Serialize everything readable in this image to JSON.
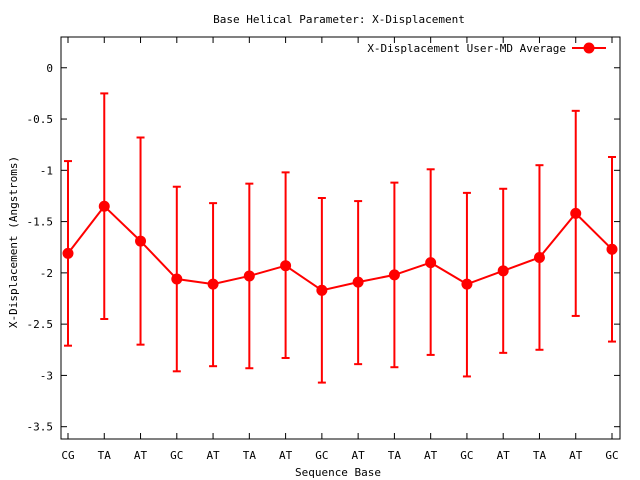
{
  "chart_data": {
    "type": "line",
    "title": "Base  Helical Parameter: X-Displacement",
    "xlabel": "Sequence Base",
    "ylabel": "X-Displacement (Angstroms)",
    "categories": [
      "CG",
      "TA",
      "AT",
      "GC",
      "AT",
      "TA",
      "AT",
      "GC",
      "AT",
      "TA",
      "AT",
      "GC",
      "AT",
      "TA",
      "AT",
      "GC"
    ],
    "ylim": [
      -3.62,
      0.3
    ],
    "yticks": [
      0,
      -0.5,
      -1,
      -1.5,
      -2,
      -2.5,
      -3,
      -3.5
    ],
    "ytick_labels": [
      "0",
      "-0.5",
      "-1",
      "-1.5",
      "-2",
      "-2.5",
      "-3",
      "-3.5"
    ],
    "legend_position": "top-right",
    "grid": false,
    "series": [
      {
        "name": "X-Displacement User-MD Average",
        "color": "#ff0000",
        "values": [
          -1.81,
          -1.35,
          -1.69,
          -2.06,
          -2.11,
          -2.03,
          -1.93,
          -2.17,
          -2.09,
          -2.02,
          -1.9,
          -2.11,
          -1.98,
          -1.85,
          -1.42,
          -1.77
        ],
        "err_upper": [
          -0.91,
          -0.25,
          -0.68,
          -1.16,
          -1.32,
          -1.13,
          -1.02,
          -1.27,
          -1.3,
          -1.12,
          -0.99,
          -1.22,
          -1.18,
          -0.95,
          -0.42,
          -0.87
        ],
        "err_lower": [
          -2.71,
          -2.45,
          -2.7,
          -2.96,
          -2.91,
          -2.93,
          -2.83,
          -3.07,
          -2.89,
          -2.92,
          -2.8,
          -3.01,
          -2.78,
          -2.75,
          -2.42,
          -2.67
        ]
      }
    ]
  }
}
